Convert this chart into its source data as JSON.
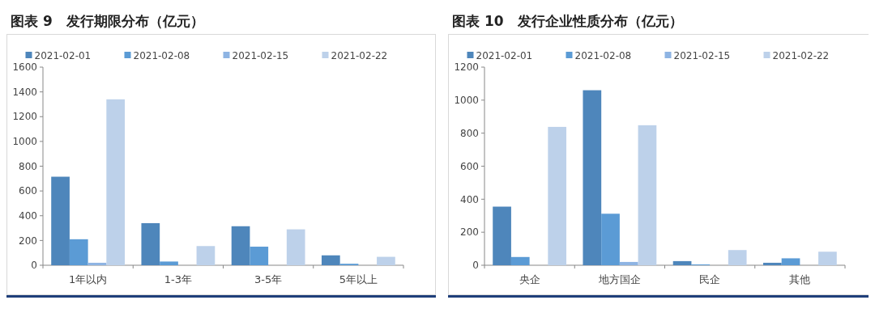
{
  "chart_data": [
    {
      "type": "bar",
      "title": "图表 9　发行期限分布（亿元）",
      "categories": [
        "1年以内",
        "1-3年",
        "3-5年",
        "5年以上"
      ],
      "series": [
        {
          "name": "2021-02-01",
          "color": "#4e86bb",
          "values": [
            715,
            340,
            315,
            80
          ]
        },
        {
          "name": "2021-02-08",
          "color": "#5b9bd5",
          "values": [
            210,
            30,
            150,
            12
          ]
        },
        {
          "name": "2021-02-15",
          "color": "#8eb4e3",
          "values": [
            20,
            0,
            0,
            0
          ]
        },
        {
          "name": "2021-02-22",
          "color": "#bdd1ea",
          "values": [
            1340,
            155,
            290,
            68
          ]
        }
      ],
      "ylim": [
        0,
        1600
      ],
      "yticks": [
        0,
        200,
        400,
        600,
        800,
        1000,
        1200,
        1400,
        1600
      ],
      "grid": false,
      "legend": "top"
    },
    {
      "type": "bar",
      "title": "图表 10　发行企业性质分布（亿元）",
      "categories": [
        "央企",
        "地方国企",
        "民企",
        "其他"
      ],
      "series": [
        {
          "name": "2021-02-01",
          "color": "#4e86bb",
          "values": [
            355,
            1060,
            25,
            15
          ]
        },
        {
          "name": "2021-02-08",
          "color": "#5b9bd5",
          "values": [
            50,
            312,
            5,
            42
          ]
        },
        {
          "name": "2021-02-15",
          "color": "#8eb4e3",
          "values": [
            0,
            20,
            0,
            0
          ]
        },
        {
          "name": "2021-02-22",
          "color": "#bdd1ea",
          "values": [
            838,
            848,
            92,
            82
          ]
        }
      ],
      "ylim": [
        0,
        1200
      ],
      "yticks": [
        0,
        200,
        400,
        600,
        800,
        1000,
        1200
      ],
      "grid": false,
      "legend": "top"
    }
  ]
}
